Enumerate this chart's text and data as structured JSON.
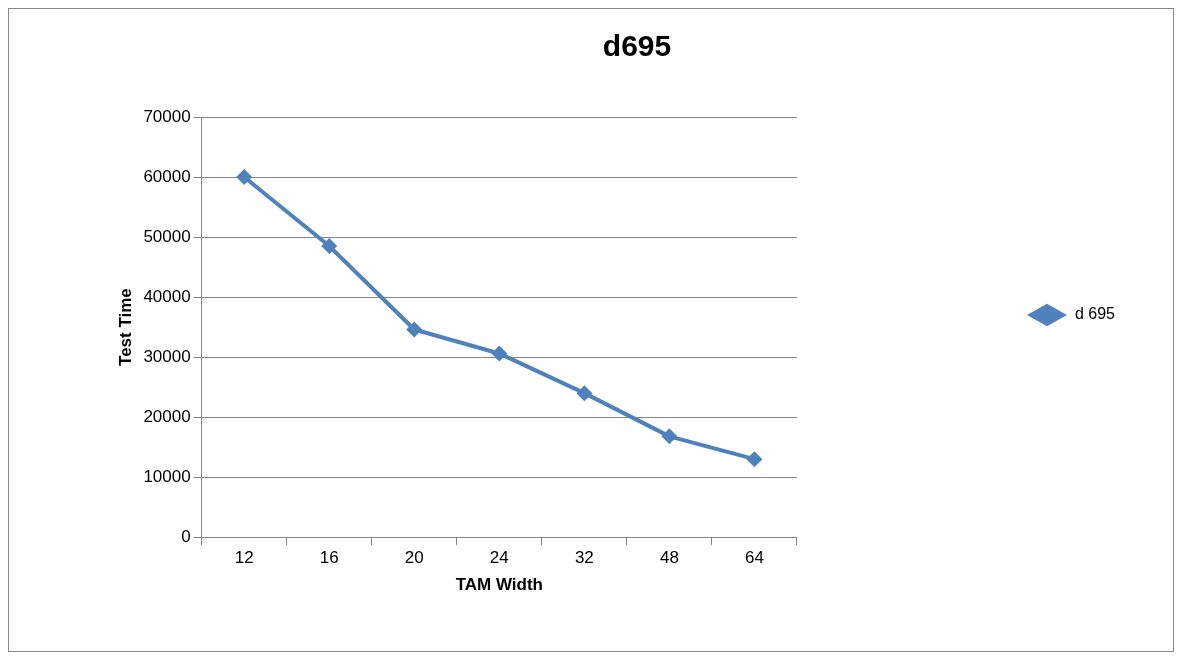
{
  "chart_data": {
    "type": "line",
    "title": "d695",
    "xlabel": "TAM Width",
    "ylabel": "Test Time",
    "categories": [
      "12",
      "16",
      "20",
      "24",
      "32",
      "48",
      "64"
    ],
    "series": [
      {
        "name": "d 695",
        "color": "#4f81bd",
        "values": [
          60000,
          48500,
          34600,
          30600,
          24000,
          16800,
          13000
        ]
      }
    ],
    "ylim": [
      0,
      70000
    ],
    "yticks": [
      0,
      10000,
      20000,
      30000,
      40000,
      50000,
      60000,
      70000
    ],
    "grid": "y",
    "legend": "right",
    "marker": "diamond",
    "line_style": "solid"
  }
}
